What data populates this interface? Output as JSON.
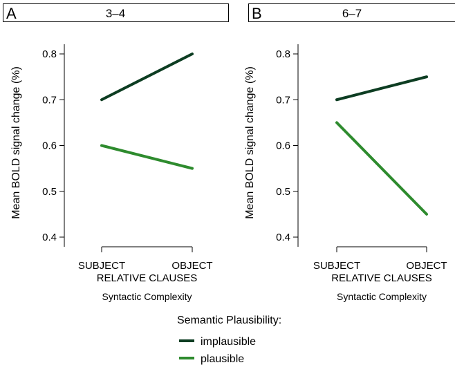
{
  "chart_data": [
    {
      "type": "line",
      "panel": "A",
      "title": "3–4",
      "categories": [
        "SUBJECT",
        "OBJECT"
      ],
      "category_group_label": "RELATIVE CLAUSES",
      "xlabel": "Syntactic Complexity",
      "ylabel": "Mean BOLD signal change (%)",
      "ylim": [
        0.4,
        0.8
      ],
      "yticks": [
        "0.4",
        "0.5",
        "0.6",
        "0.7",
        "0.8"
      ],
      "series": [
        {
          "name": "implausible",
          "color": "#0d3d22",
          "values": [
            0.7,
            0.8
          ]
        },
        {
          "name": "plausible",
          "color": "#2e8b2e",
          "values": [
            0.6,
            0.55
          ]
        }
      ]
    },
    {
      "type": "line",
      "panel": "B",
      "title": "6–7",
      "categories": [
        "SUBJECT",
        "OBJECT"
      ],
      "category_group_label": "RELATIVE CLAUSES",
      "xlabel": "Syntactic Complexity",
      "ylabel": "Mean BOLD signal change (%)",
      "ylim": [
        0.4,
        0.8
      ],
      "yticks": [
        "0.4",
        "0.5",
        "0.6",
        "0.7",
        "0.8"
      ],
      "series": [
        {
          "name": "implausible",
          "color": "#0d3d22",
          "values": [
            0.7,
            0.75
          ]
        },
        {
          "name": "plausible",
          "color": "#2e8b2e",
          "values": [
            0.65,
            0.45
          ]
        }
      ]
    }
  ],
  "legend": {
    "title": "Semantic Plausibility:",
    "items": [
      {
        "label": "implausible",
        "color": "#0d3d22"
      },
      {
        "label": "plausible",
        "color": "#2e8b2e"
      }
    ]
  }
}
